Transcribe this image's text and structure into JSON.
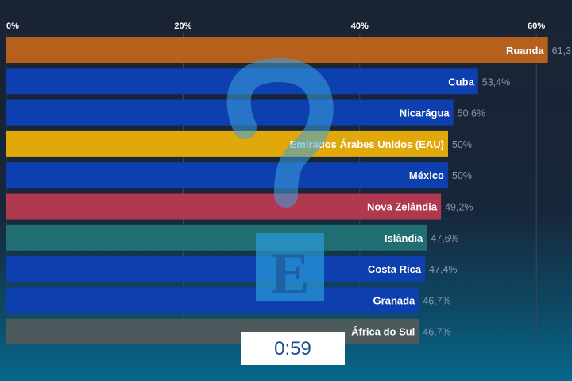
{
  "chart_data": {
    "type": "bar",
    "orientation": "horizontal",
    "xlim": [
      0,
      62
    ],
    "x_ticks": [
      "0%",
      "20%",
      "40%",
      "60%"
    ],
    "categories": [
      "Ruanda",
      "Cuba",
      "Nicarágua",
      "Emirados Árabes Unidos (EAU)",
      "México",
      "Nova Zelândia",
      "Islândia",
      "Costa Rica",
      "Granada",
      "África do Sul"
    ],
    "values": [
      61.3,
      53.4,
      50.6,
      50,
      50,
      49.2,
      47.6,
      47.4,
      46.7,
      46.7
    ],
    "value_labels": [
      "61,3",
      "53,4%",
      "50,6%",
      "50%",
      "50%",
      "49,2%",
      "47,6%",
      "47,4%",
      "46,7%",
      "46,7%"
    ],
    "colors": [
      "#b5601c",
      "#0e3fae",
      "#0e3fae",
      "#e0a80a",
      "#0e3fae",
      "#b0394f",
      "#206e72",
      "#0e3fae",
      "#0e3fae",
      "#4c5a5d"
    ],
    "grid": true
  },
  "timer": "0:59",
  "overlay_icons": [
    "question-mark-icon",
    "logo-e-icon"
  ]
}
